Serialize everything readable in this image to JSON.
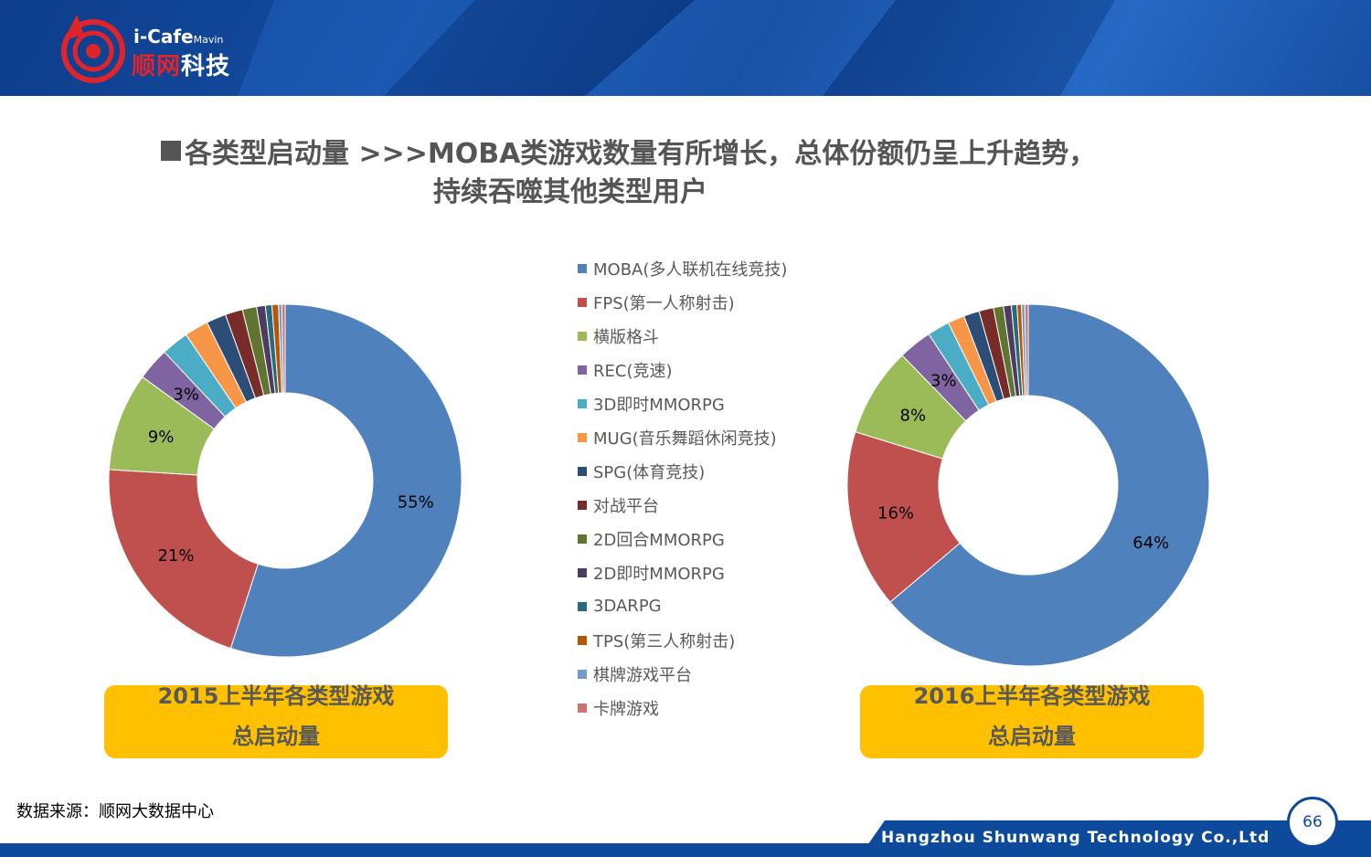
{
  "header": {
    "brand_top": "i-Cafe",
    "brand_sub": "Mavin",
    "brand_cn_a": "顺网",
    "brand_cn_b": "科技"
  },
  "title": {
    "line1": "各类型启动量   >>>MOBA类游戏数量有所增长，总体份额仍呈上升趋势，",
    "line2": "持续吞噬其他类型用户"
  },
  "legend": [
    {
      "label": "MOBA(多人联机在线竞技)",
      "color": "#4f81bd"
    },
    {
      "label": "FPS(第一人称射击)",
      "color": "#c0504d"
    },
    {
      "label": "横版格斗",
      "color": "#9bbb59"
    },
    {
      "label": "REC(竞速)",
      "color": "#8064a2"
    },
    {
      "label": "3D即时MMORPG",
      "color": "#4bacc6"
    },
    {
      "label": "MUG(音乐舞蹈休闲竞技)",
      "color": "#f79646"
    },
    {
      "label": "SPG(体育竞技)",
      "color": "#2c4d75"
    },
    {
      "label": "对战平台",
      "color": "#772c2a"
    },
    {
      "label": "2D回合MMORPG",
      "color": "#5f7530"
    },
    {
      "label": "2D即时MMORPG",
      "color": "#4d3b62"
    },
    {
      "label": "3DARPG",
      "color": "#276a7c"
    },
    {
      "label": "TPS(第三人称射击)",
      "color": "#b65708"
    },
    {
      "label": "棋牌游戏平台",
      "color": "#729aca"
    },
    {
      "label": "卡牌游戏",
      "color": "#cd7371"
    }
  ],
  "chart_data": [
    {
      "type": "pie",
      "title": "2015上半年各类型游戏总启动量",
      "categories": [
        "MOBA(多人联机在线竞技)",
        "FPS(第一人称射击)",
        "横版格斗",
        "REC(竞速)",
        "3D即时MMORPG",
        "MUG(音乐舞蹈休闲竞技)",
        "SPG(体育竞技)",
        "对战平台",
        "2D回合MMORPG",
        "2D即时MMORPG",
        "3DARPG",
        "TPS(第三人称射击)",
        "棋牌游戏平台",
        "卡牌游戏"
      ],
      "values": [
        55,
        21,
        9,
        3,
        2.5,
        2.2,
        1.8,
        1.6,
        1.3,
        0.8,
        0.6,
        0.6,
        0.3,
        0.3
      ],
      "data_labels": [
        "55%",
        "21%",
        "9%",
        "3%",
        "",
        "",
        "",
        "",
        "",
        "",
        "",
        "",
        "",
        ""
      ]
    },
    {
      "type": "pie",
      "title": "2016上半年各类型游戏总启动量",
      "categories": [
        "MOBA(多人联机在线竞技)",
        "FPS(第一人称射击)",
        "横版格斗",
        "REC(竞速)",
        "3D即时MMORPG",
        "MUG(音乐舞蹈休闲竞技)",
        "SPG(体育竞技)",
        "对战平台",
        "2D回合MMORPG",
        "2D即时MMORPG",
        "3DARPG",
        "TPS(第三人称射击)",
        "棋牌游戏平台",
        "卡牌游戏"
      ],
      "values": [
        64,
        16,
        8,
        3,
        2,
        1.5,
        1.4,
        1.3,
        0.9,
        0.7,
        0.5,
        0.4,
        0.3,
        0.3
      ],
      "data_labels": [
        "64%",
        "16%",
        "8%",
        "3%",
        "",
        "",
        "",
        "",
        "",
        "",
        "",
        "",
        "",
        ""
      ]
    }
  ],
  "captions": [
    {
      "line1": "2015上半年各类型游戏",
      "line2": "总启动量"
    },
    {
      "line1": "2016上半年各类型游戏",
      "line2": "总启动量"
    }
  ],
  "source": "数据来源：顺网大数据中心",
  "footer": {
    "company": "Hangzhou Shunwang Technology Co.,Ltd",
    "page_number": "66"
  }
}
